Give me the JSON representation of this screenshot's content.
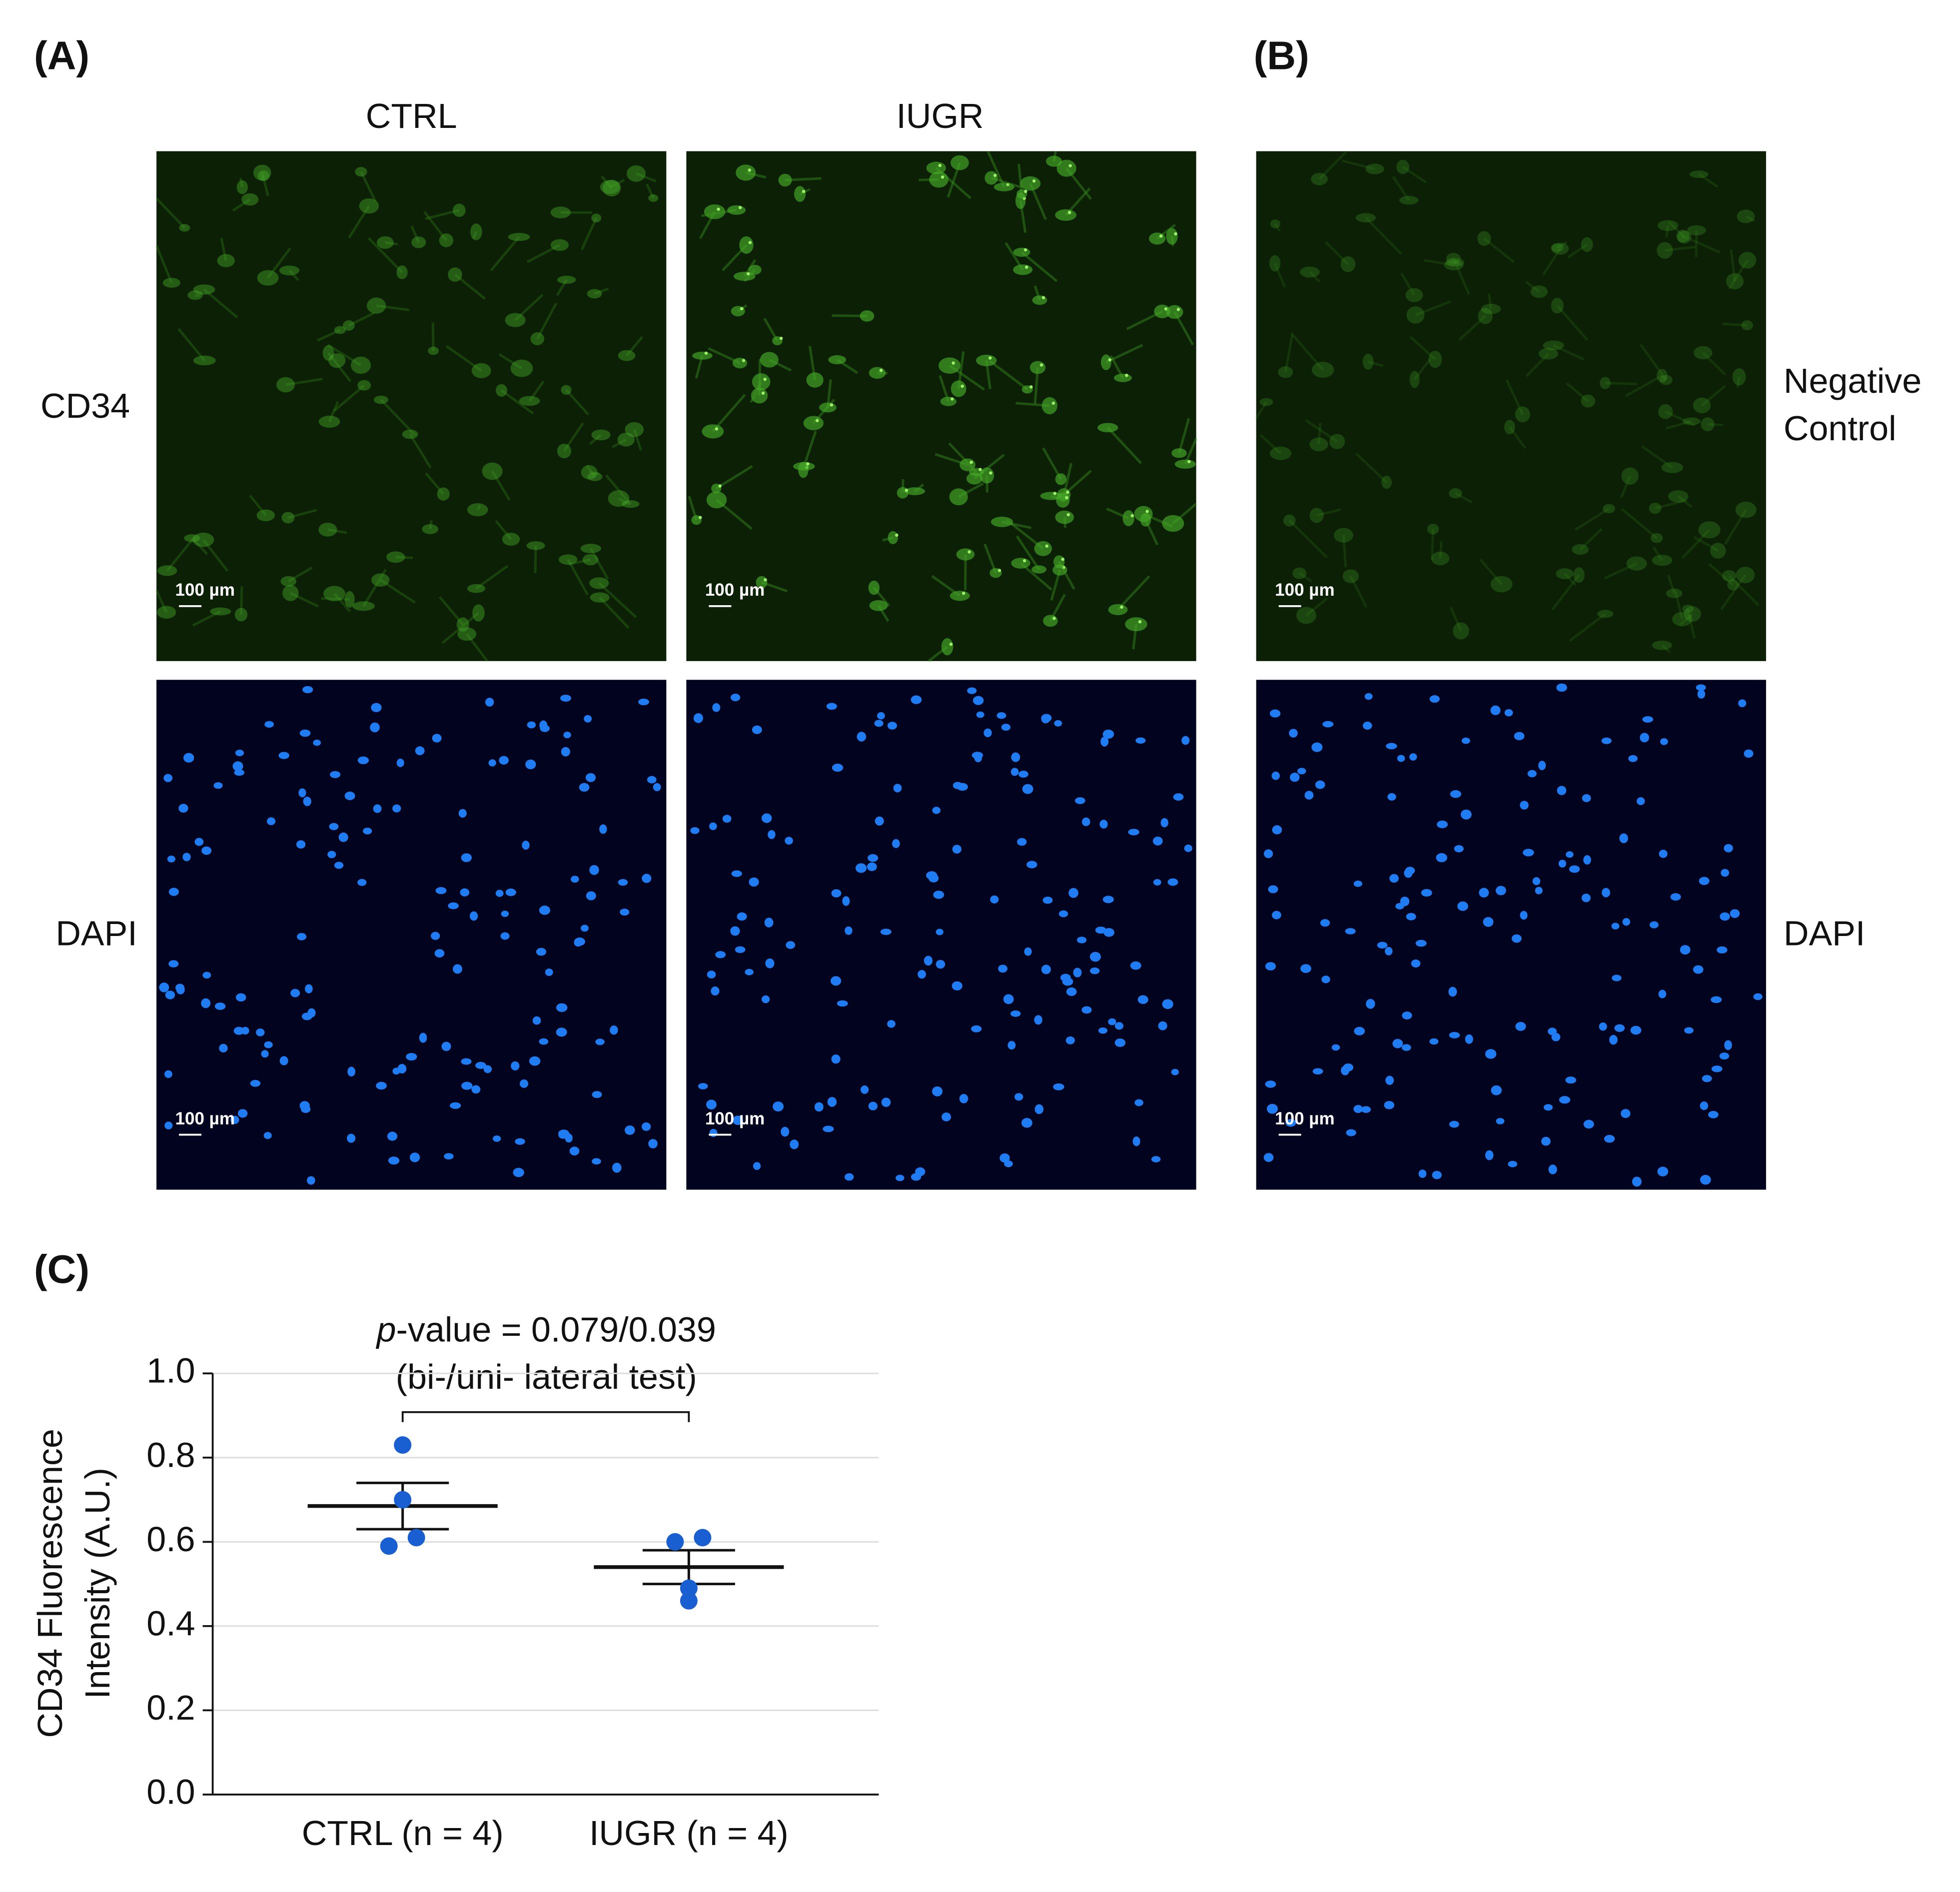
{
  "panels": {
    "a": {
      "label": "(A)",
      "columns": [
        "CTRL",
        "IUGR"
      ],
      "rows": [
        "CD34",
        "DAPI"
      ]
    },
    "b": {
      "label": "(B)",
      "negative_control": [
        "Negative",
        "Control"
      ],
      "dapi": "DAPI"
    },
    "c": {
      "label": "(C)"
    }
  },
  "scale_bar": "100 µm",
  "chart_data": {
    "type": "dotplot",
    "annotation": {
      "italic": "p",
      "text": "-value = 0.079/0.039",
      "note": "(bi-/uni- lateral test)"
    },
    "ylabel": [
      "CD34 Fluorescence",
      "Intensity (A.U.)"
    ],
    "categories": [
      "CTRL (n = 4)",
      "IUGR (n = 4)"
    ],
    "points": [
      [
        0.83,
        0.7,
        0.61,
        0.59
      ],
      [
        0.6,
        0.61,
        0.49,
        0.46
      ]
    ],
    "means": [
      0.685,
      0.54
    ],
    "errors": [
      0.055,
      0.04
    ],
    "color": "#1a5fd1",
    "ylim": [
      0,
      1
    ],
    "yticks": [
      {
        "value": 0,
        "label": "0.0"
      },
      0.2,
      0.4,
      0.6,
      0.8,
      {
        "value": 1,
        "label": "1.0"
      }
    ],
    "grid": true
  }
}
